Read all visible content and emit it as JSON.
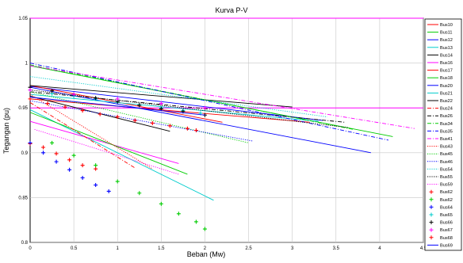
{
  "chart_data": {
    "type": "line",
    "title": "Kurva P-V",
    "xlabel": "Beban (Mw)",
    "ylabel": "Tegangan (pu)",
    "xlim": [
      0,
      4.5
    ],
    "ylim": [
      0.8,
      1.05
    ],
    "x_ticks": [
      "0",
      "0.5",
      "1",
      "1.5",
      "2",
      "2.5",
      "3",
      "3.5",
      "4",
      "4.5"
    ],
    "y_ticks": [
      "0.8",
      "0.85",
      "0.9",
      "0.95",
      "1",
      "1.05"
    ],
    "grid": true,
    "legend_position": "right",
    "reference_lines": [
      {
        "y": 0.95,
        "color": "#ff00ff"
      },
      {
        "y": 1.05,
        "color": "#ff00ff"
      }
    ],
    "series": [
      {
        "name": "Bus10",
        "color": "#ff0000",
        "style": "solid",
        "x": [
          0,
          3.2
        ],
        "y": [
          0.96,
          0.934
        ]
      },
      {
        "name": "Bus11",
        "color": "#00cc00",
        "style": "solid",
        "x": [
          0,
          4.15
        ],
        "y": [
          0.997,
          0.918
        ]
      },
      {
        "name": "Bus12",
        "color": "#0000ff",
        "style": "solid",
        "x": [
          0,
          3.35
        ],
        "y": [
          0.974,
          0.936
        ]
      },
      {
        "name": "Bus13",
        "color": "#00cccc",
        "style": "solid",
        "x": [
          0,
          2.1
        ],
        "y": [
          0.948,
          0.847
        ]
      },
      {
        "name": "Bus14",
        "color": "#000000",
        "style": "solid",
        "x": [
          0,
          1.6
        ],
        "y": [
          0.963,
          0.924
        ]
      },
      {
        "name": "Bus16",
        "color": "#ff00ff",
        "style": "solid",
        "x": [
          0,
          1.7
        ],
        "y": [
          0.935,
          0.888
        ]
      },
      {
        "name": "Bus17",
        "color": "#ff0000",
        "style": "solid",
        "x": [
          0,
          2.2
        ],
        "y": [
          0.975,
          0.934
        ]
      },
      {
        "name": "Bus18",
        "color": "#00cc00",
        "style": "solid",
        "x": [
          0,
          1.8
        ],
        "y": [
          0.945,
          0.876
        ]
      },
      {
        "name": "Bus20",
        "color": "#0000ff",
        "style": "solid",
        "x": [
          0,
          3.9
        ],
        "y": [
          0.973,
          0.9
        ]
      },
      {
        "name": "Bus21",
        "color": "#00cccc",
        "style": "solid",
        "x": [
          0,
          3.3
        ],
        "y": [
          0.965,
          0.935
        ]
      },
      {
        "name": "Bus22",
        "color": "#000000",
        "style": "solid",
        "x": [
          0,
          3.0
        ],
        "y": [
          0.975,
          0.951
        ]
      },
      {
        "name": "Bus24",
        "color": "#ff0000",
        "style": "dashdot",
        "x": [
          0,
          1.2
        ],
        "y": [
          0.956,
          0.883
        ]
      },
      {
        "name": "Bus26",
        "color": "#000000",
        "style": "dashdot",
        "x": [
          0,
          3.6
        ],
        "y": [
          0.968,
          0.934
        ]
      },
      {
        "name": "Bus34",
        "color": "#00cc00",
        "style": "dashdot",
        "x": [
          0,
          3.7
        ],
        "y": [
          0.998,
          0.926
        ]
      },
      {
        "name": "Bus35",
        "color": "#0000ff",
        "style": "dashdot",
        "x": [
          0,
          4.1
        ],
        "y": [
          1.0,
          0.914
        ]
      },
      {
        "name": "Bus41",
        "color": "#ff00ff",
        "style": "dashdot",
        "x": [
          0,
          4.4
        ],
        "y": [
          0.997,
          0.927
        ]
      },
      {
        "name": "Bus43",
        "color": "#ff0000",
        "style": "dotted",
        "x": [
          0,
          1.4
        ],
        "y": [
          0.965,
          0.882
        ]
      },
      {
        "name": "Bus45",
        "color": "#00cc00",
        "style": "dotted",
        "x": [
          0,
          2.5
        ],
        "y": [
          0.968,
          0.911
        ]
      },
      {
        "name": "Bus46",
        "color": "#0000ff",
        "style": "dotted",
        "x": [
          0,
          2.55
        ],
        "y": [
          0.958,
          0.913
        ]
      },
      {
        "name": "Bus54",
        "color": "#00cccc",
        "style": "dotted",
        "x": [
          0,
          3.4
        ],
        "y": [
          0.985,
          0.94
        ]
      },
      {
        "name": "Bus55",
        "color": "#000000",
        "style": "dotted",
        "x": [
          0,
          3.65
        ],
        "y": [
          0.97,
          0.928
        ]
      },
      {
        "name": "Bus59",
        "color": "#ff00ff",
        "style": "dotted",
        "x": [
          0.05,
          1.7
        ],
        "y": [
          0.926,
          0.876
        ]
      },
      {
        "name": "Bus62",
        "color": "#ff0000",
        "style": "marker",
        "x": [
          0,
          0.15,
          0.3,
          0.45,
          0.6,
          0.75
        ],
        "y": [
          0.91,
          0.906,
          0.899,
          0.892,
          0.886,
          0.882
        ]
      },
      {
        "name": "Bus62",
        "color": "#00cc00",
        "style": "marker",
        "x": [
          0.25,
          0.5,
          0.75,
          1.0,
          1.25,
          1.5,
          1.7,
          1.9,
          2.0
        ],
        "y": [
          0.911,
          0.897,
          0.886,
          0.868,
          0.855,
          0.843,
          0.832,
          0.823,
          0.815
        ]
      },
      {
        "name": "Bus64",
        "color": "#0000ff",
        "style": "marker",
        "x": [
          0,
          0.15,
          0.3,
          0.45,
          0.6,
          0.75,
          0.9
        ],
        "y": [
          0.911,
          0.9,
          0.89,
          0.881,
          0.872,
          0.864,
          0.857
        ]
      },
      {
        "name": "Bus65",
        "color": "#00cccc",
        "style": "marker",
        "x": [
          0,
          0.25,
          0.5,
          0.75,
          1.0,
          1.25,
          1.5,
          1.75,
          1.95
        ],
        "y": [
          0.97,
          0.966,
          0.963,
          0.96,
          0.957,
          0.953,
          0.95,
          0.947,
          0.944
        ]
      },
      {
        "name": "Bus66",
        "color": "#000000",
        "style": "marker",
        "x": [
          0,
          0.25,
          0.5,
          0.75,
          1.0,
          1.25,
          1.5,
          1.75,
          2.0
        ],
        "y": [
          0.973,
          0.969,
          0.965,
          0.961,
          0.957,
          0.953,
          0.949,
          0.946,
          0.942
        ]
      },
      {
        "name": "Bus67",
        "color": "#ff00ff",
        "style": "marker",
        "x": [
          0,
          0.5,
          1.0,
          1.5,
          2.0
        ],
        "y": [
          0.97,
          0.965,
          0.96,
          0.955,
          0.95
        ]
      },
      {
        "name": "Bus68",
        "color": "#ff0000",
        "style": "marker",
        "x": [
          0,
          0.2,
          0.4,
          0.6,
          0.8,
          1.0,
          1.2,
          1.4,
          1.6,
          1.8,
          1.9
        ],
        "y": [
          0.96,
          0.955,
          0.951,
          0.947,
          0.943,
          0.94,
          0.936,
          0.933,
          0.93,
          0.927,
          0.925
        ]
      },
      {
        "name": "Bus69",
        "color": "#0000ff",
        "style": "solid",
        "x": [
          0,
          2.0
        ],
        "y": [
          0.962,
          0.942
        ]
      }
    ]
  }
}
